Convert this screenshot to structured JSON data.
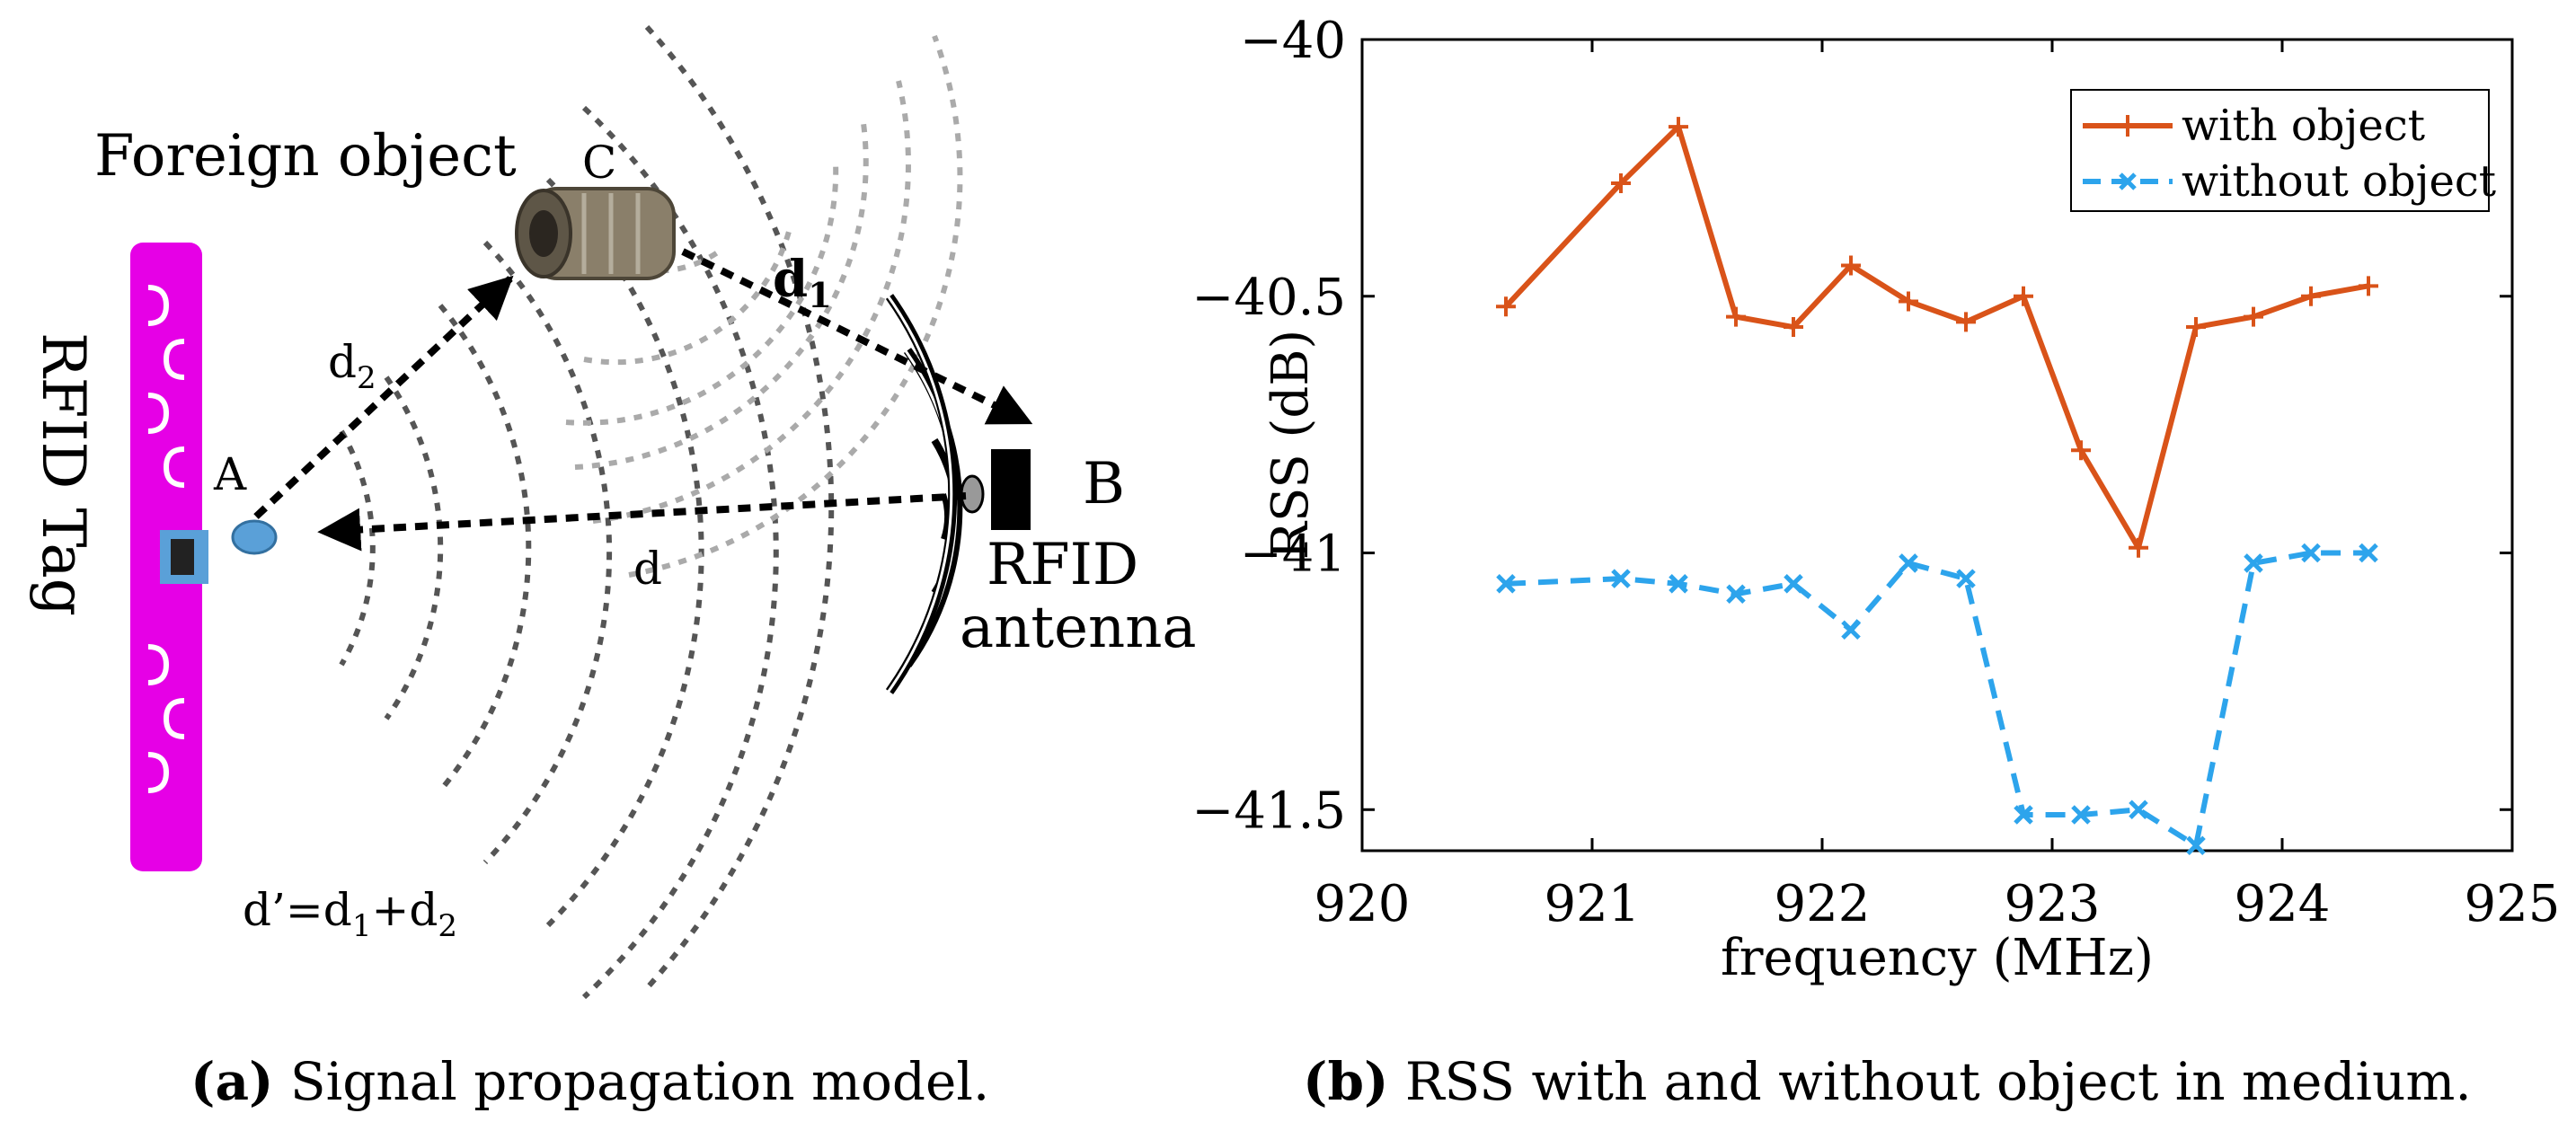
{
  "panel_a": {
    "foreign_object_label": "Foreign object",
    "point_c": "C",
    "point_a": "A",
    "point_b": "B",
    "rfid_tag_label": "RFID Tag",
    "d1_label": "d",
    "d1_sub": "1",
    "d2_label": "d",
    "d2_sub": "2",
    "d_label": "d",
    "formula_prefix": "d’=d",
    "formula_sub1": "1",
    "formula_plus": "+d",
    "formula_sub2": "2",
    "antenna_label_1": "RFID",
    "antenna_label_2": "antenna",
    "tag_color": "#e600e6",
    "tag_chip_color": "#5aa0d8",
    "object_color": "#8a7f6a",
    "caption_letter": "(a)",
    "caption_text": " Signal propagation model."
  },
  "panel_b": {
    "caption_letter": "(b)",
    "caption_text": " RSS with and without object in medium."
  },
  "chart_data": {
    "type": "line",
    "xlabel": "frequency (MHz)",
    "ylabel": "RSS (dB)",
    "xlim": [
      920,
      925
    ],
    "ylim": [
      -41.58,
      -40
    ],
    "xticks": [
      920,
      921,
      922,
      923,
      924,
      925
    ],
    "yticks": [
      -40,
      -40.5,
      -41,
      -41.5
    ],
    "xtick_labels": [
      "920",
      "921",
      "922",
      "923",
      "924",
      "925"
    ],
    "ytick_labels": [
      "−40",
      "−40.5",
      "−41",
      "−41.5"
    ],
    "grid": false,
    "legend_position": "top-right",
    "series": [
      {
        "name": "with object",
        "color": "#d95319",
        "marker": "+",
        "line_style": "solid",
        "x": [
          920.625,
          921.125,
          921.375,
          921.625,
          921.875,
          922.125,
          922.375,
          922.625,
          922.875,
          923.125,
          923.375,
          923.625,
          923.875,
          924.125,
          924.375
        ],
        "values": [
          -40.52,
          -40.28,
          -40.17,
          -40.54,
          -40.56,
          -40.44,
          -40.51,
          -40.55,
          -40.5,
          -40.8,
          -40.99,
          -40.56,
          -40.54,
          -40.5,
          -40.48
        ]
      },
      {
        "name": "without object",
        "color": "#2da4ec",
        "marker": "x",
        "line_style": "dashed",
        "x": [
          920.625,
          921.125,
          921.375,
          921.625,
          921.875,
          922.125,
          922.375,
          922.625,
          922.875,
          923.125,
          923.375,
          923.625,
          923.875,
          924.125,
          924.375
        ],
        "values": [
          -41.06,
          -41.05,
          -41.06,
          -41.08,
          -41.06,
          -41.15,
          -41.02,
          -41.05,
          -41.51,
          -41.51,
          -41.5,
          -41.57,
          -41.02,
          -41.0,
          -41.0
        ]
      }
    ]
  }
}
